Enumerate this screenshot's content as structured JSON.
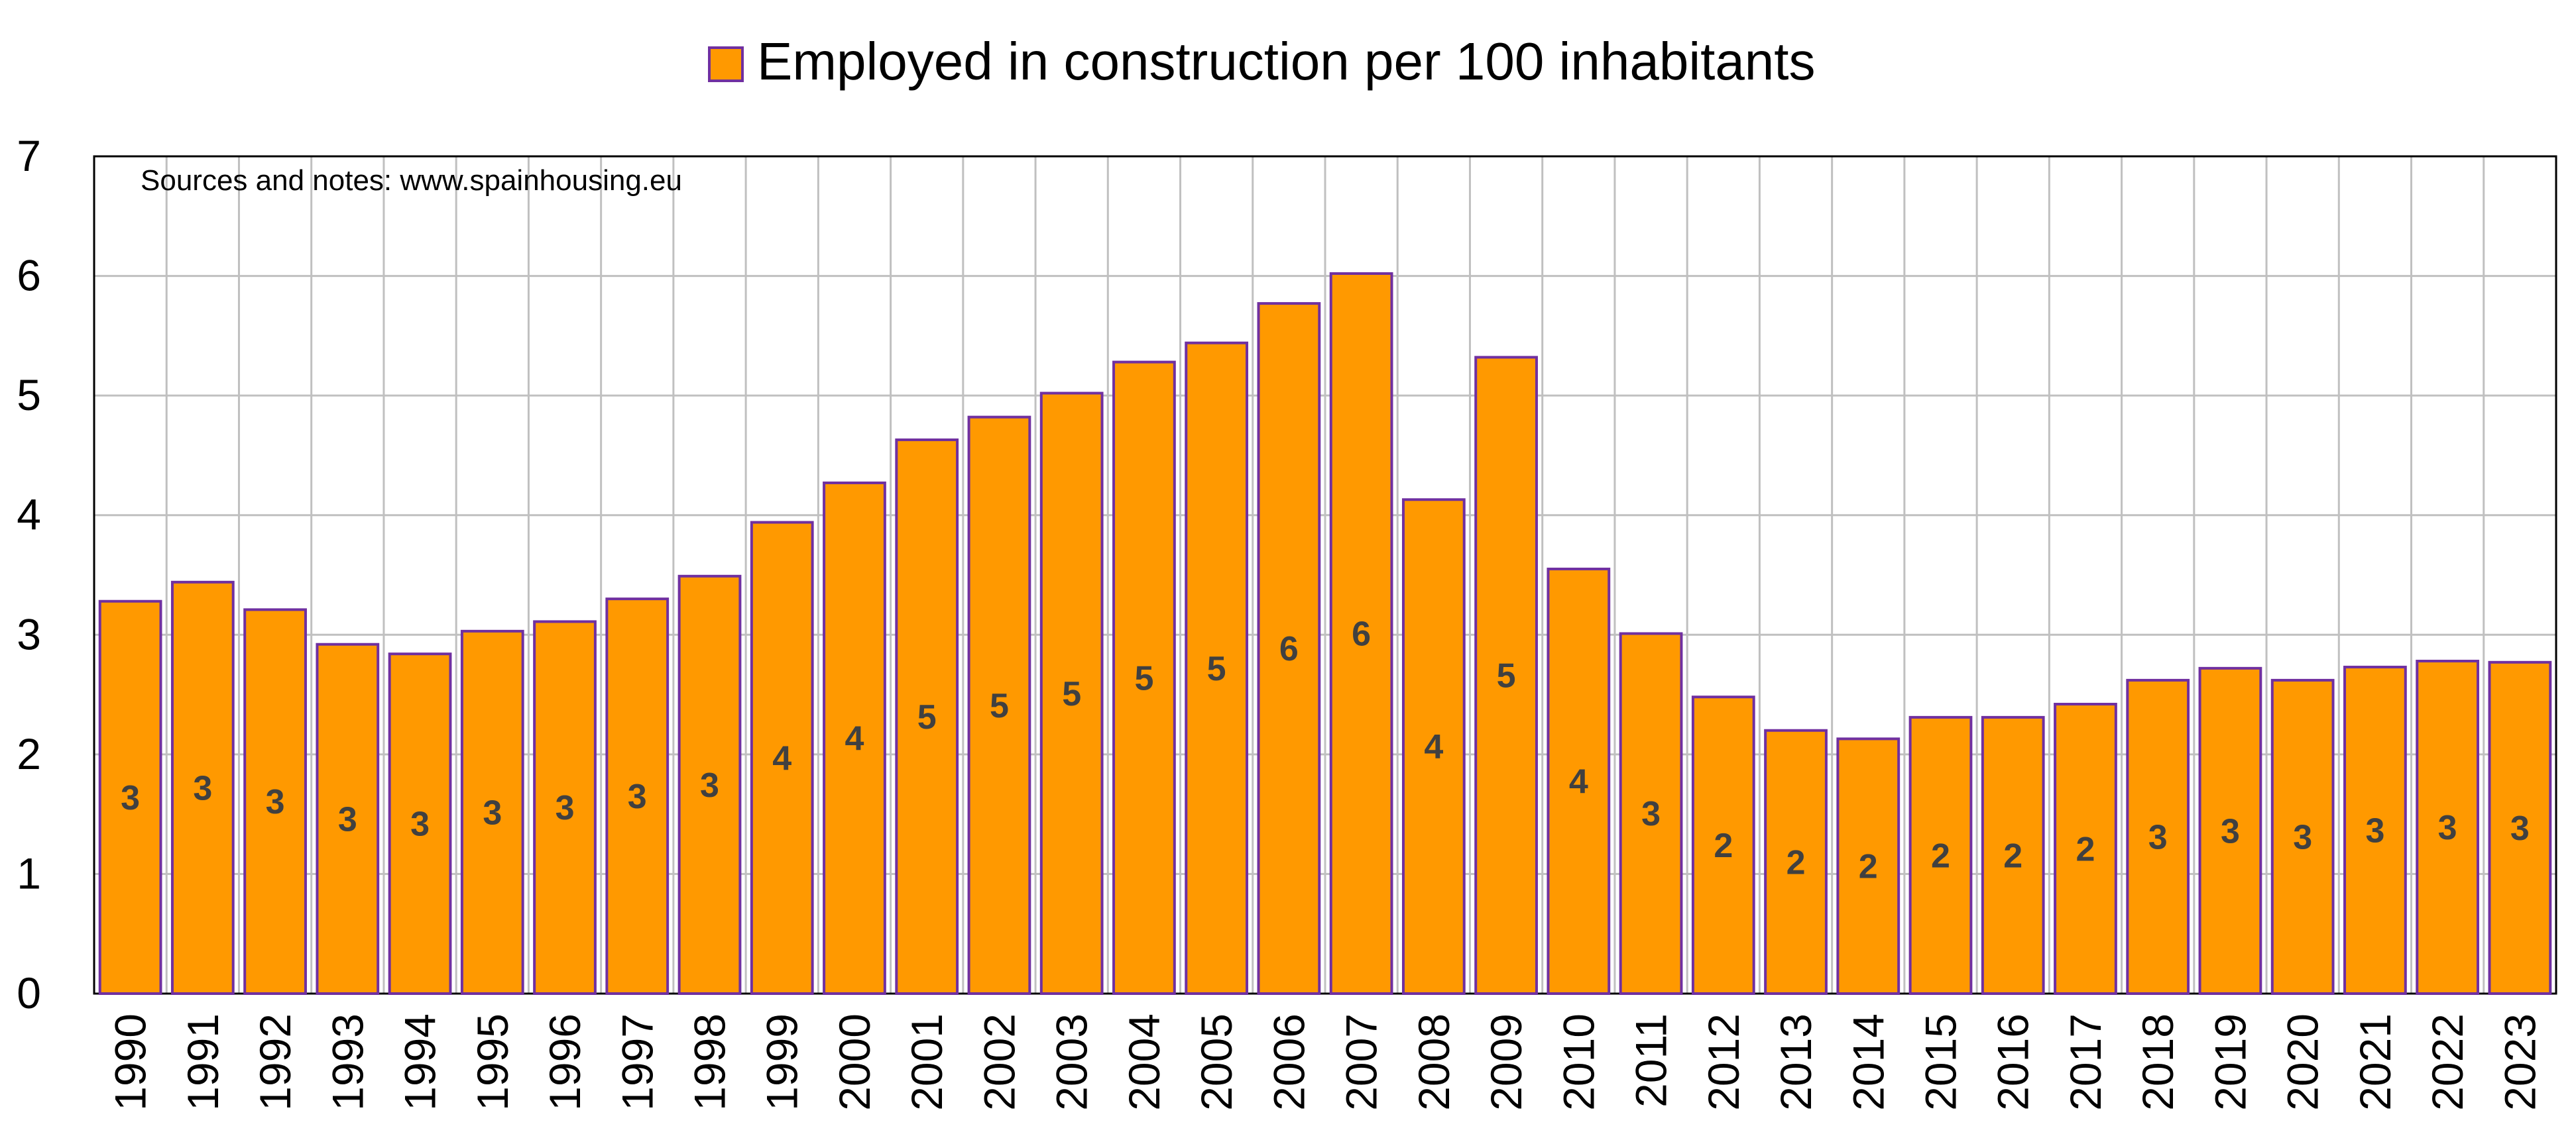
{
  "colors": {
    "bar_fill": "#FF9900",
    "bar_stroke": "#7030A0",
    "grid": "#C0C0C0",
    "axis": "#000000",
    "data_label": "#404040"
  },
  "chart_data": {
    "type": "bar",
    "title": "",
    "xlabel": "",
    "ylabel": "",
    "legend_position": "top-center",
    "grid": true,
    "note": "Sources and notes: www.spainhousing.eu",
    "ylim": [
      0,
      7
    ],
    "yticks": [
      "0",
      "1",
      "2",
      "3",
      "4",
      "5",
      "6",
      "7"
    ],
    "categories": [
      "1990",
      "1991",
      "1992",
      "1993",
      "1994",
      "1995",
      "1996",
      "1997",
      "1998",
      "1999",
      "2000",
      "2001",
      "2002",
      "2003",
      "2004",
      "2005",
      "2006",
      "2007",
      "2008",
      "2009",
      "2010",
      "2011",
      "2012",
      "2013",
      "2014",
      "2015",
      "2016",
      "2017",
      "2018",
      "2019",
      "2020",
      "2021",
      "2022",
      "2023"
    ],
    "series": [
      {
        "name": "Employed in construction per 100 inhabitants",
        "values": [
          3.28,
          3.44,
          3.21,
          2.92,
          2.84,
          3.03,
          3.11,
          3.3,
          3.49,
          3.94,
          4.27,
          4.63,
          4.82,
          5.02,
          5.28,
          5.44,
          5.77,
          6.02,
          4.13,
          5.32,
          3.55,
          3.01,
          2.48,
          2.2,
          2.13,
          2.31,
          2.31,
          2.42,
          2.62,
          2.72,
          2.62,
          2.73,
          2.78,
          2.77
        ],
        "data_labels": [
          "3",
          "3",
          "3",
          "3",
          "3",
          "3",
          "3",
          "3",
          "3",
          "4",
          "4",
          "5",
          "5",
          "5",
          "5",
          "5",
          "6",
          "6",
          "4",
          "5",
          "4",
          "3",
          "2",
          "2",
          "2",
          "2",
          "2",
          "2",
          "3",
          "3",
          "3",
          "3",
          "3",
          "3"
        ]
      }
    ]
  }
}
